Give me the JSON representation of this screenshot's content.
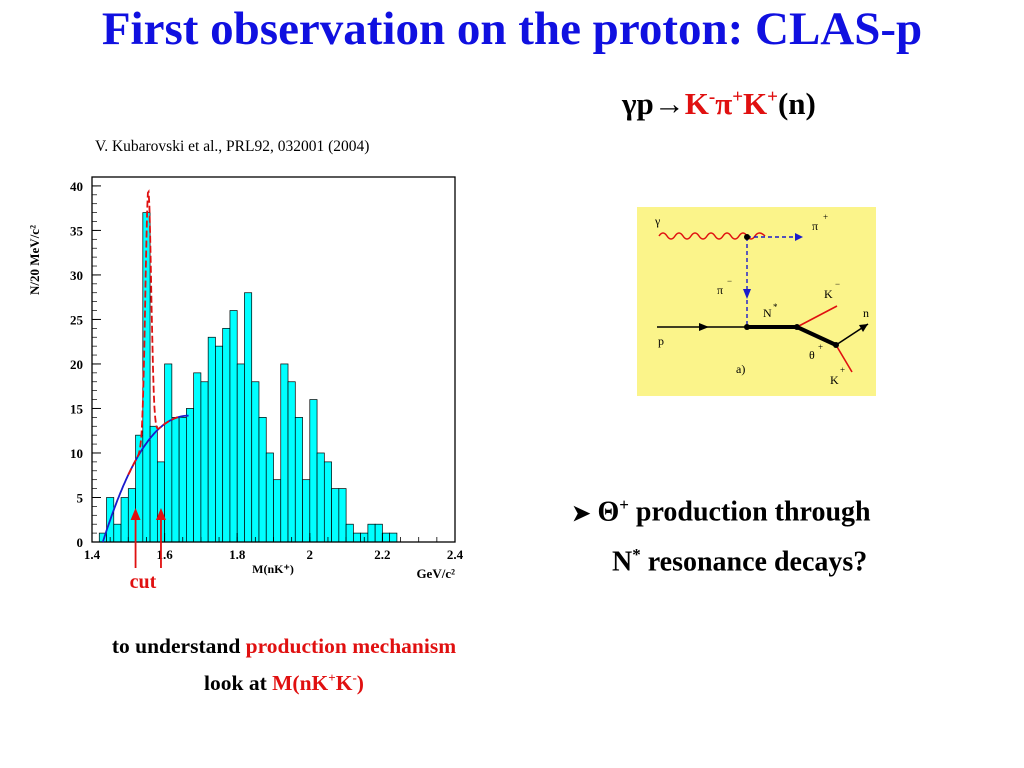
{
  "slide": {
    "title": "First observation on the proton: CLAS-p",
    "reaction": {
      "gamma": "γ",
      "p": "p",
      "arrow": "→",
      "k1": "K",
      "k1_sup": "-",
      "pi": "π",
      "pi_sup": "+",
      "k2": "K",
      "k2_sup": "+",
      "tail": "(n)"
    },
    "citation": "V. Kubarovski et al., PRL92, 032001 (2004)",
    "bullet": {
      "marker": "➤",
      "theta": "Θ",
      "theta_sup": "+",
      "line1_rest": " production through",
      "n": "N",
      "n_sup": "*",
      "line2_rest": " resonance decays?"
    },
    "understand": {
      "prefix": "to understand ",
      "highlight": "production mechanism",
      "line2_prefix": "look at ",
      "m_open": "M(nK",
      "sup1": "+",
      "k": "K",
      "sup2": "-",
      "close": ")"
    },
    "cut_label": "cut",
    "colors": {
      "title": "#1010e0",
      "highlight": "#e01010",
      "histogram_fill": "#00ffff",
      "fit_curve": "#e01010",
      "background_fit": "#1a1acc",
      "diagram_bg": "#fbf48a"
    }
  },
  "chart_data": {
    "type": "bar",
    "subtype": "histogram",
    "ylabel": "N/20 MeV/c²",
    "xlabel": "M(nK⁺)",
    "xunit": "GeV/c²",
    "xlim": [
      1.4,
      2.4
    ],
    "ylim": [
      0,
      41
    ],
    "xticks": [
      "1.4",
      "1.6",
      "1.8",
      "2",
      "2.2",
      "2.4"
    ],
    "xtick_values": [
      1.4,
      1.6,
      1.8,
      2.0,
      2.2,
      2.4
    ],
    "yticks": [
      "0",
      "5",
      "10",
      "15",
      "20",
      "25",
      "30",
      "35",
      "40"
    ],
    "ytick_values": [
      0,
      5,
      10,
      15,
      20,
      25,
      30,
      35,
      40
    ],
    "bin_width": 0.02,
    "bin_edges_start": 1.42,
    "counts": [
      1,
      5,
      2,
      5,
      6,
      12,
      37,
      13,
      9,
      20,
      14,
      14,
      15,
      19,
      18,
      23,
      22,
      24,
      26,
      20,
      28,
      18,
      14,
      10,
      7,
      20,
      18,
      14,
      7,
      16,
      10,
      9,
      6,
      6,
      2,
      1,
      1,
      2,
      2,
      1,
      1,
      0,
      0,
      0,
      0,
      0,
      0,
      0,
      0,
      0
    ],
    "signal_fit": {
      "peak_x": 1.555,
      "peak_y": 39.5,
      "sigma": 0.008
    },
    "background_fit": {
      "x_start": 1.43,
      "x_end": 1.67,
      "y_at_end": 14.2
    },
    "cut_arrows_x": [
      1.52,
      1.59
    ]
  },
  "diagram": {
    "labels": {
      "gamma": "γ",
      "pi_plus": "π",
      "pi_plus_sup": "+",
      "pi_minus": "π",
      "pi_minus_sup": "−",
      "k_minus": "K",
      "k_minus_sup": "−",
      "n_star": "N",
      "n_star_sup": "*",
      "n": "n",
      "p": "p",
      "theta": "θ",
      "theta_sup": "+",
      "k_plus": "K",
      "k_plus_sup": "+",
      "panel": "a)"
    }
  }
}
